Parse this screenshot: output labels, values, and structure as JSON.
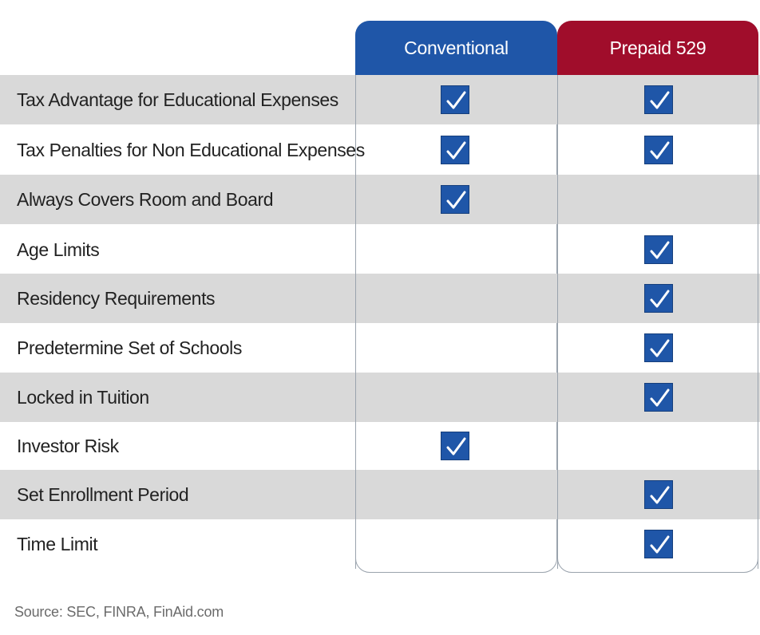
{
  "chart_data": {
    "type": "table",
    "columns": [
      "Conventional",
      "Prepaid 529"
    ],
    "column_colors": [
      "#1f56a8",
      "#a00d2b"
    ],
    "rows": [
      {
        "feature": "Tax Advantage for Educational Expenses",
        "conventional": true,
        "prepaid": true
      },
      {
        "feature": "Tax Penalties for Non Educational Expenses",
        "conventional": true,
        "prepaid": true
      },
      {
        "feature": "Always Covers Room and Board",
        "conventional": true,
        "prepaid": false
      },
      {
        "feature": "Age Limits",
        "conventional": false,
        "prepaid": true
      },
      {
        "feature": "Residency Requirements",
        "conventional": false,
        "prepaid": true
      },
      {
        "feature": "Predetermine Set of Schools",
        "conventional": false,
        "prepaid": true
      },
      {
        "feature": "Locked in Tuition",
        "conventional": false,
        "prepaid": true
      },
      {
        "feature": "Investor Risk",
        "conventional": true,
        "prepaid": false
      },
      {
        "feature": "Set Enrollment Period",
        "conventional": false,
        "prepaid": true
      },
      {
        "feature": "Time Limit",
        "conventional": false,
        "prepaid": true
      }
    ],
    "checkmark_icon": "checkbox-checked-icon"
  },
  "source": "Source: SEC, FINRA, FinAid.com"
}
